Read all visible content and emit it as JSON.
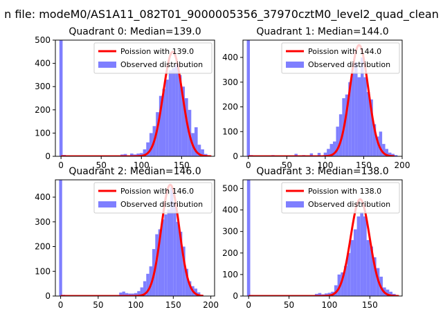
{
  "figure": {
    "suptitle": "n file: modeM0/AS1A11_082T01_9000005356_37970cztM0_level2_quad_clean",
    "colors": {
      "observed": "#7f7fff",
      "poisson": "#ff0000"
    }
  },
  "chart_data": [
    {
      "type": "bar",
      "title": "Quadrant 0: Median=139.0",
      "median": 139.0,
      "xlim": [
        -7,
        191
      ],
      "ylim": [
        0,
        500
      ],
      "xticks": [
        0,
        50,
        100,
        150
      ],
      "yticks": [
        0,
        100,
        200,
        300,
        400,
        500
      ],
      "bin_width": 4,
      "series": [
        {
          "name": "Poission with 139.0",
          "type": "line",
          "color": "#ff0000",
          "poisson_mean": 139.0,
          "peak": 450
        },
        {
          "name": "Observed distribution",
          "type": "bar",
          "color": "#7f7fff",
          "bins": [
            [
              -2,
              500
            ],
            [
              2,
              6
            ],
            [
              74,
              8
            ],
            [
              78,
              10
            ],
            [
              82,
              4
            ],
            [
              86,
              12
            ],
            [
              90,
              8
            ],
            [
              94,
              12
            ],
            [
              98,
              14
            ],
            [
              102,
              30
            ],
            [
              106,
              60
            ],
            [
              110,
              100
            ],
            [
              114,
              130
            ],
            [
              118,
              190
            ],
            [
              122,
              260
            ],
            [
              126,
              290
            ],
            [
              130,
              330
            ],
            [
              134,
              370
            ],
            [
              138,
              380
            ],
            [
              142,
              395
            ],
            [
              146,
              350
            ],
            [
              150,
              300
            ],
            [
              154,
              250
            ],
            [
              158,
              200
            ],
            [
              162,
              100
            ],
            [
              166,
              125
            ],
            [
              170,
              50
            ],
            [
              174,
              30
            ],
            [
              178,
              10
            ]
          ]
        }
      ]
    },
    {
      "type": "bar",
      "title": "Quadrant 1: Median=144.0",
      "median": 144.0,
      "xlim": [
        -7,
        200
      ],
      "ylim": [
        0,
        470
      ],
      "xticks": [
        0,
        50,
        100,
        150,
        200
      ],
      "yticks": [
        0,
        100,
        200,
        300,
        400
      ],
      "bin_width": 4,
      "series": [
        {
          "name": "Poission with 144.0",
          "type": "line",
          "color": "#ff0000",
          "poisson_mean": 144.0,
          "peak": 450
        },
        {
          "name": "Observed distribution",
          "type": "bar",
          "color": "#7f7fff",
          "bins": [
            [
              -2,
              470
            ],
            [
              2,
              5
            ],
            [
              30,
              5
            ],
            [
              60,
              10
            ],
            [
              70,
              5
            ],
            [
              80,
              12
            ],
            [
              90,
              14
            ],
            [
              98,
              15
            ],
            [
              102,
              30
            ],
            [
              106,
              50
            ],
            [
              110,
              60
            ],
            [
              114,
              120
            ],
            [
              118,
              170
            ],
            [
              122,
              235
            ],
            [
              126,
              250
            ],
            [
              130,
              300
            ],
            [
              134,
              340
            ],
            [
              138,
              380
            ],
            [
              142,
              320
            ],
            [
              146,
              400
            ],
            [
              150,
              320
            ],
            [
              154,
              260
            ],
            [
              158,
              230
            ],
            [
              162,
              130
            ],
            [
              166,
              80
            ],
            [
              170,
              100
            ],
            [
              174,
              50
            ],
            [
              178,
              30
            ],
            [
              182,
              15
            ],
            [
              186,
              10
            ],
            [
              190,
              5
            ]
          ]
        }
      ]
    },
    {
      "type": "bar",
      "title": "Quadrant 2: Median=146.0",
      "median": 146.0,
      "xlim": [
        -7,
        205
      ],
      "ylim": [
        0,
        470
      ],
      "xticks": [
        0,
        50,
        100,
        150,
        200
      ],
      "yticks": [
        0,
        100,
        200,
        300,
        400
      ],
      "bin_width": 4,
      "series": [
        {
          "name": "Poission with 146.0",
          "type": "line",
          "color": "#ff0000",
          "poisson_mean": 146.0,
          "peak": 450
        },
        {
          "name": "Observed distribution",
          "type": "bar",
          "color": "#7f7fff",
          "bins": [
            [
              -2,
              470
            ],
            [
              2,
              5
            ],
            [
              78,
              14
            ],
            [
              82,
              18
            ],
            [
              86,
              12
            ],
            [
              90,
              10
            ],
            [
              94,
              10
            ],
            [
              98,
              12
            ],
            [
              102,
              20
            ],
            [
              106,
              35
            ],
            [
              110,
              60
            ],
            [
              114,
              90
            ],
            [
              118,
              120
            ],
            [
              122,
              190
            ],
            [
              126,
              250
            ],
            [
              130,
              270
            ],
            [
              134,
              310
            ],
            [
              138,
              330
            ],
            [
              142,
              350
            ],
            [
              146,
              440
            ],
            [
              150,
              380
            ],
            [
              154,
              300
            ],
            [
              158,
              260
            ],
            [
              162,
              200
            ],
            [
              166,
              110
            ],
            [
              170,
              60
            ],
            [
              174,
              40
            ],
            [
              178,
              30
            ],
            [
              182,
              15
            ],
            [
              186,
              5
            ]
          ]
        }
      ]
    },
    {
      "type": "bar",
      "title": "Quadrant 3: Median=138.0",
      "median": 138.0,
      "xlim": [
        -7,
        190
      ],
      "ylim": [
        0,
        540
      ],
      "xticks": [
        0,
        50,
        100,
        150
      ],
      "yticks": [
        0,
        100,
        200,
        300,
        400,
        500
      ],
      "bin_width": 4,
      "series": [
        {
          "name": "Poission with 138.0",
          "type": "line",
          "color": "#ff0000",
          "poisson_mean": 138.0,
          "peak": 450
        },
        {
          "name": "Observed distribution",
          "type": "bar",
          "color": "#7f7fff",
          "bins": [
            [
              -2,
              540
            ],
            [
              2,
              5
            ],
            [
              82,
              10
            ],
            [
              86,
              14
            ],
            [
              90,
              8
            ],
            [
              94,
              12
            ],
            [
              98,
              15
            ],
            [
              102,
              20
            ],
            [
              106,
              50
            ],
            [
              110,
              100
            ],
            [
              114,
              110
            ],
            [
              118,
              140
            ],
            [
              122,
              200
            ],
            [
              126,
              260
            ],
            [
              130,
              310
            ],
            [
              134,
              370
            ],
            [
              138,
              390
            ],
            [
              142,
              370
            ],
            [
              146,
              260
            ],
            [
              150,
              230
            ],
            [
              154,
              180
            ],
            [
              158,
              130
            ],
            [
              162,
              90
            ],
            [
              166,
              40
            ],
            [
              170,
              30
            ],
            [
              174,
              20
            ],
            [
              178,
              10
            ]
          ]
        }
      ]
    }
  ]
}
